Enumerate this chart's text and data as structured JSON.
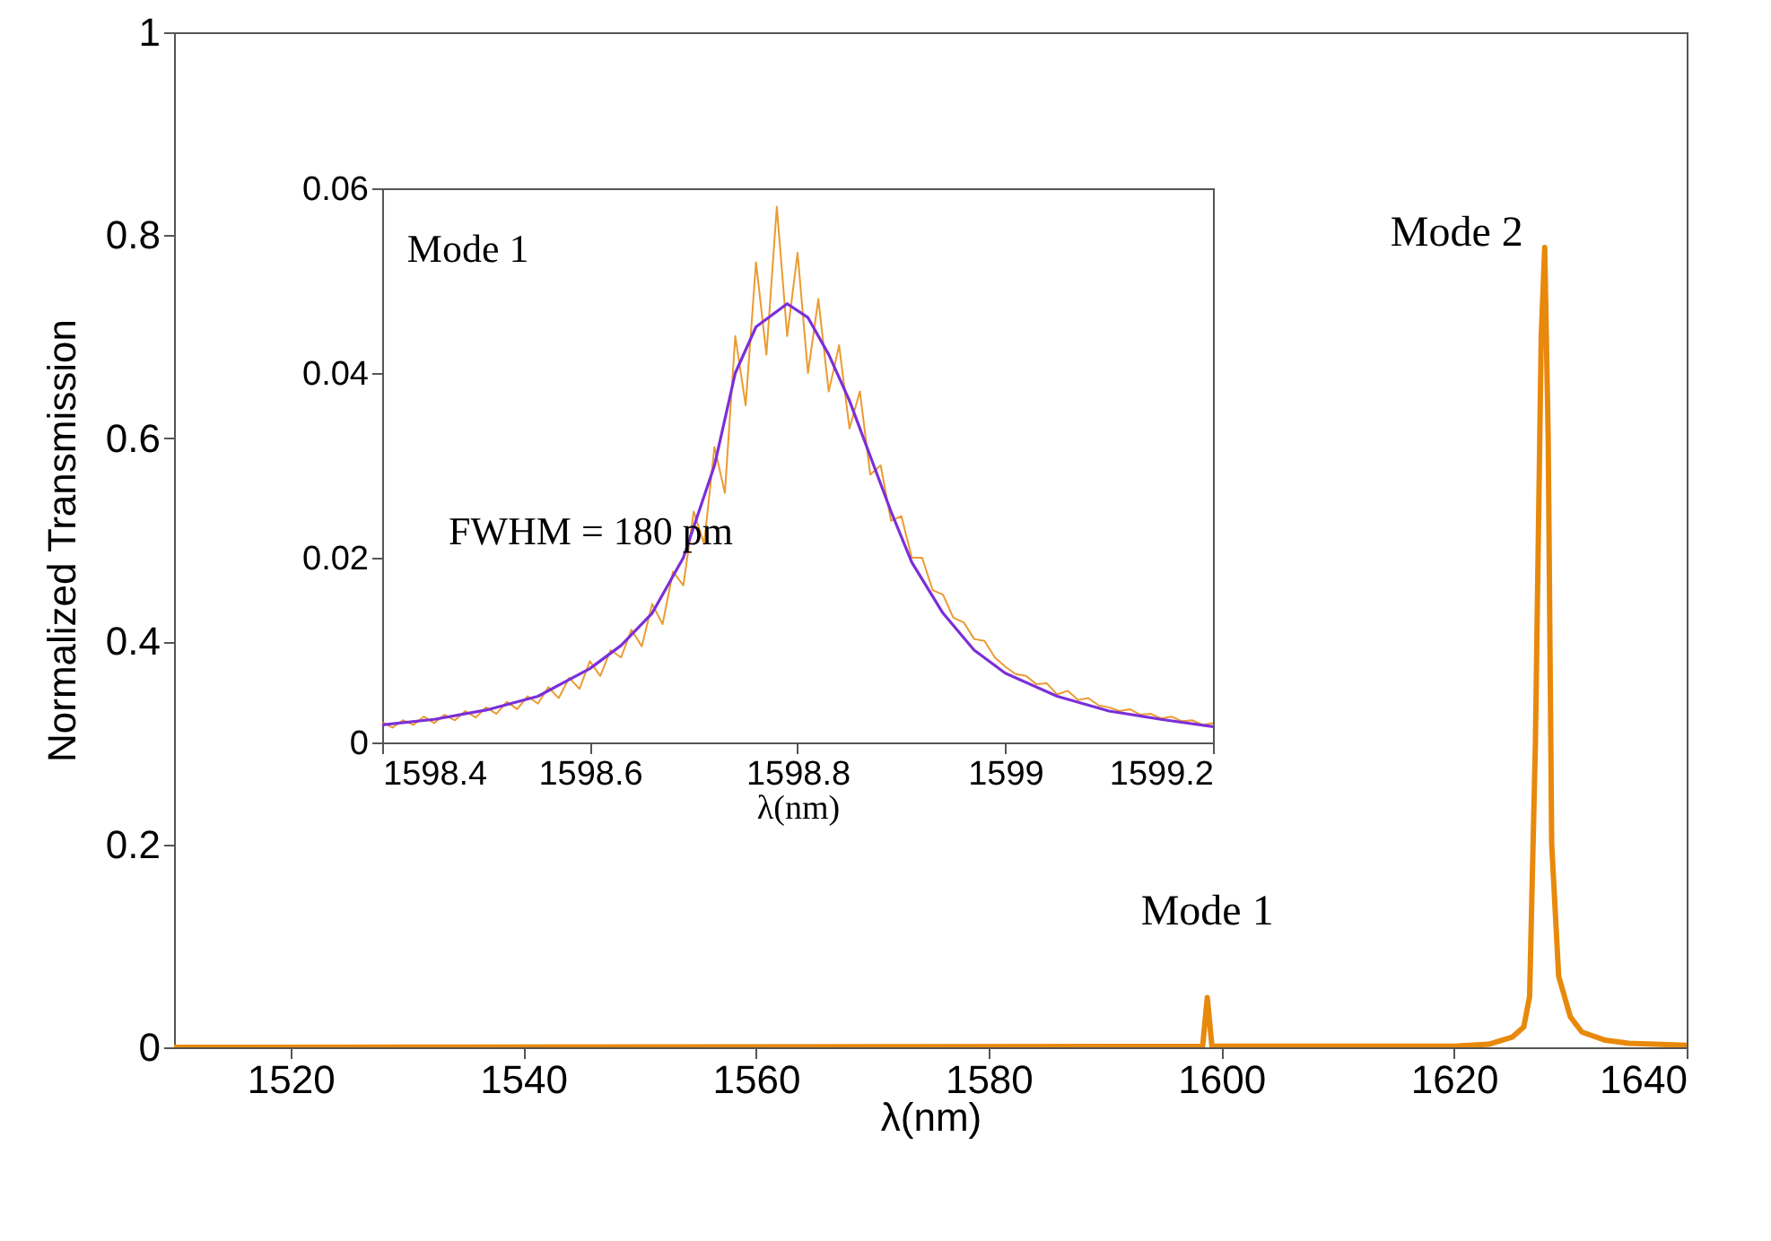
{
  "chart_data": [
    {
      "type": "line",
      "xlabel": "λ(nm)",
      "ylabel": "Normalized Transmission",
      "xlim": [
        1510,
        1640
      ],
      "ylim": [
        0,
        1
      ],
      "xticks": [
        1520,
        1540,
        1560,
        1580,
        1600,
        1620,
        1640
      ],
      "yticks": [
        0,
        0.2,
        0.4,
        0.6,
        0.8,
        1
      ],
      "x": [
        1510,
        1598.4,
        1598.8,
        1599.2,
        1620,
        1623,
        1625,
        1626,
        1626.5,
        1627,
        1627.5,
        1627.8,
        1628.1,
        1628.4,
        1629,
        1630,
        1631,
        1633,
        1635,
        1640
      ],
      "series": [
        {
          "color": "#e8890c",
          "values": [
            0,
            0.001,
            0.049,
            0.001,
            0.001,
            0.003,
            0.01,
            0.02,
            0.05,
            0.3,
            0.7,
            0.788,
            0.6,
            0.2,
            0.07,
            0.03,
            0.015,
            0.007,
            0.004,
            0.002
          ]
        }
      ],
      "annotations": [
        {
          "text": "Mode 1",
          "x": 1598.8,
          "y": 0.049
        },
        {
          "text": "Mode 2",
          "x": 1627.8,
          "y": 0.788
        }
      ]
    },
    {
      "type": "line",
      "xlabel": "λ(nm)",
      "xlim": [
        1598.4,
        1599.2
      ],
      "ylim": [
        0,
        0.06
      ],
      "xticks": [
        1598.4,
        1598.6,
        1598.8,
        1599,
        1599.2
      ],
      "yticks": [
        0,
        0.02,
        0.04,
        0.06
      ],
      "x": [
        1598.4,
        1598.41,
        1598.42,
        1598.43,
        1598.44,
        1598.45,
        1598.46,
        1598.47,
        1598.48,
        1598.49,
        1598.5,
        1598.51,
        1598.52,
        1598.53,
        1598.54,
        1598.55,
        1598.56,
        1598.57,
        1598.58,
        1598.59,
        1598.6,
        1598.61,
        1598.62,
        1598.63,
        1598.64,
        1598.65,
        1598.66,
        1598.67,
        1598.68,
        1598.69,
        1598.7,
        1598.71,
        1598.72,
        1598.73,
        1598.74,
        1598.75,
        1598.76,
        1598.77,
        1598.78,
        1598.79,
        1598.8,
        1598.81,
        1598.82,
        1598.83,
        1598.84,
        1598.85,
        1598.86,
        1598.87,
        1598.88,
        1598.89,
        1598.9,
        1598.91,
        1598.92,
        1598.93,
        1598.94,
        1598.95,
        1598.96,
        1598.97,
        1598.98,
        1598.99,
        1599.0,
        1599.01,
        1599.02,
        1599.03,
        1599.04,
        1599.05,
        1599.06,
        1599.07,
        1599.08,
        1599.09,
        1599.1,
        1599.11,
        1599.12,
        1599.13,
        1599.14,
        1599.15,
        1599.16,
        1599.17,
        1599.18,
        1599.19,
        1599.2
      ],
      "series": [
        {
          "color": "#e8890c",
          "values": [
            0.0022,
            0.0016,
            0.0024,
            0.0019,
            0.0028,
            0.0021,
            0.003,
            0.0024,
            0.0034,
            0.0027,
            0.0038,
            0.0031,
            0.0044,
            0.0036,
            0.005,
            0.0042,
            0.006,
            0.0048,
            0.007,
            0.0058,
            0.0088,
            0.0072,
            0.01,
            0.0092,
            0.0122,
            0.0104,
            0.015,
            0.0128,
            0.0185,
            0.017,
            0.025,
            0.0215,
            0.032,
            0.027,
            0.044,
            0.0365,
            0.052,
            0.042,
            0.058,
            0.044,
            0.053,
            0.04,
            0.048,
            0.038,
            0.043,
            0.034,
            0.038,
            0.029,
            0.03,
            0.024,
            0.0245,
            0.02,
            0.02,
            0.0165,
            0.016,
            0.0135,
            0.013,
            0.0112,
            0.011,
            0.0092,
            0.0082,
            0.0074,
            0.0072,
            0.0063,
            0.0064,
            0.0052,
            0.0056,
            0.0046,
            0.0048,
            0.004,
            0.0038,
            0.0034,
            0.0036,
            0.003,
            0.0031,
            0.0026,
            0.0028,
            0.0023,
            0.0024,
            0.0019,
            0.0021
          ]
        },
        {
          "color": "#7b2fd8",
          "x": [
            1598.4,
            1598.45,
            1598.5,
            1598.55,
            1598.6,
            1598.63,
            1598.66,
            1598.69,
            1598.72,
            1598.74,
            1598.76,
            1598.79,
            1598.81,
            1598.83,
            1598.85,
            1598.87,
            1598.89,
            1598.91,
            1598.94,
            1598.97,
            1599.0,
            1599.05,
            1599.1,
            1599.15,
            1599.2
          ],
          "values": [
            0.0019,
            0.0025,
            0.0035,
            0.005,
            0.008,
            0.0105,
            0.014,
            0.02,
            0.03,
            0.04,
            0.045,
            0.0475,
            0.046,
            0.042,
            0.037,
            0.031,
            0.025,
            0.0195,
            0.014,
            0.01,
            0.0075,
            0.005,
            0.0034,
            0.0025,
            0.0017
          ]
        }
      ],
      "annotations": [
        "Mode 1",
        "FWHM = 180 pm"
      ]
    }
  ]
}
